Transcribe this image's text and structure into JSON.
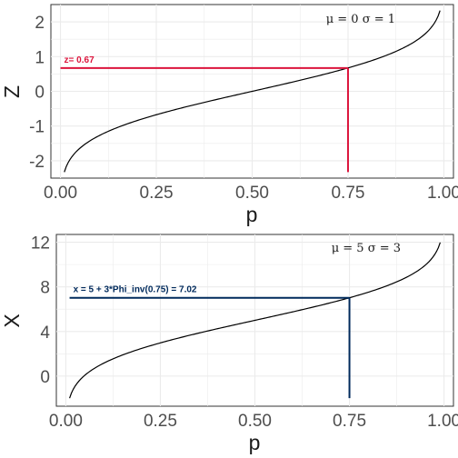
{
  "chart_data": [
    {
      "type": "line",
      "title": "",
      "xlabel": "p",
      "ylabel": "Z",
      "xlim": [
        -0.025,
        1.025
      ],
      "ylim": [
        -2.5,
        2.5
      ],
      "x_ticks": [
        "0.00",
        "0.25",
        "0.50",
        "0.75",
        "1.00"
      ],
      "x_tick_values": [
        0,
        0.25,
        0.5,
        0.75,
        1
      ],
      "y_ticks": [
        "-2",
        "-1",
        "0",
        "1",
        "2"
      ],
      "y_tick_values": [
        -2,
        -1,
        0,
        1,
        2
      ],
      "grid": true,
      "params_label": "μ = 0  σ = 1",
      "mu": 0,
      "sigma": 1,
      "p_range": [
        0.01,
        0.99
      ],
      "line_color": "#000000",
      "marker": {
        "p": 0.75,
        "value": 0.67,
        "label": "z= 0.67",
        "color": "#dc143c",
        "hline_start_p": 0.0
      }
    },
    {
      "type": "line",
      "title": "",
      "xlabel": "p",
      "ylabel": "X",
      "xlim": [
        -0.025,
        1.025
      ],
      "ylim": [
        -2.7,
        12.7
      ],
      "x_ticks": [
        "0.00",
        "0.25",
        "0.50",
        "0.75",
        "1.00"
      ],
      "x_tick_values": [
        0,
        0.25,
        0.5,
        0.75,
        1
      ],
      "y_ticks": [
        "0",
        "4",
        "8",
        "12"
      ],
      "y_tick_values": [
        0,
        4,
        8,
        12
      ],
      "grid": true,
      "params_label": "μ = 5  σ = 3",
      "mu": 5,
      "sigma": 3,
      "p_range": [
        0.01,
        0.99
      ],
      "line_color": "#000000",
      "marker": {
        "p": 0.75,
        "value": 7.02,
        "label": "x = 5 + 3*Phi_inv(0.75) =  7.02",
        "color": "#002a5c",
        "hline_start_p": 0.01
      }
    }
  ]
}
